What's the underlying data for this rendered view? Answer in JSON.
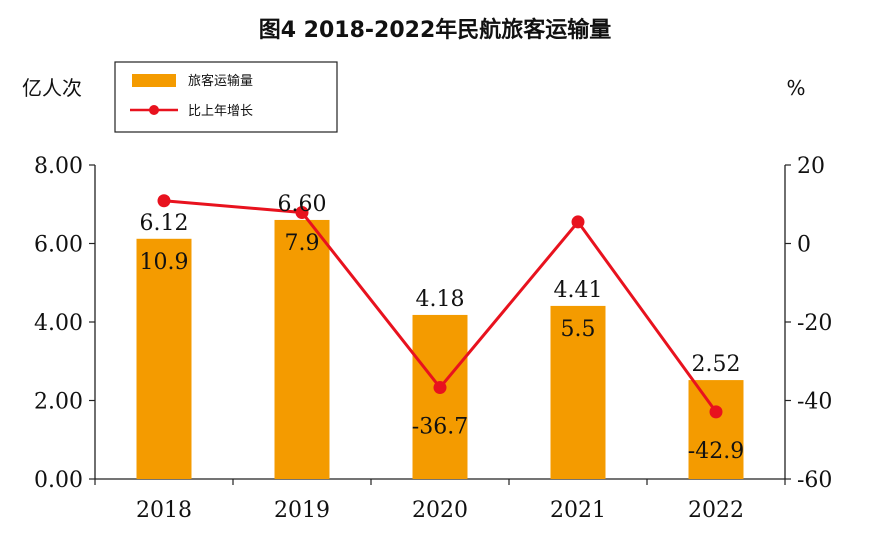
{
  "chart_data": {
    "type": "bar",
    "title": "图4  2018-2022年民航旅客运输量",
    "categories": [
      "2018",
      "2019",
      "2020",
      "2021",
      "2022"
    ],
    "series": [
      {
        "name": "旅客运输量",
        "kind": "bar",
        "axis": "left",
        "values": [
          6.12,
          6.6,
          4.18,
          4.41,
          2.52
        ],
        "labels": [
          "6.12",
          "6.60",
          "4.18",
          "4.41",
          "2.52"
        ],
        "color": "#F49B00"
      },
      {
        "name": "比上年增长",
        "kind": "line",
        "axis": "right",
        "values": [
          10.9,
          7.9,
          -36.7,
          5.5,
          -42.9
        ],
        "labels": [
          "10.9",
          "7.9",
          "-36.7",
          "5.5",
          "-42.9"
        ],
        "color": "#E8121E"
      }
    ],
    "ylabel": "亿人次",
    "y2label": "%",
    "ylim": [
      0,
      8
    ],
    "y2lim": [
      -60,
      20
    ],
    "yticks": [
      "0.00",
      "2.00",
      "4.00",
      "6.00",
      "8.00"
    ],
    "y2ticks": [
      "-60",
      "-40",
      "-20",
      "0",
      "20"
    ],
    "legend_position": "top-left"
  }
}
